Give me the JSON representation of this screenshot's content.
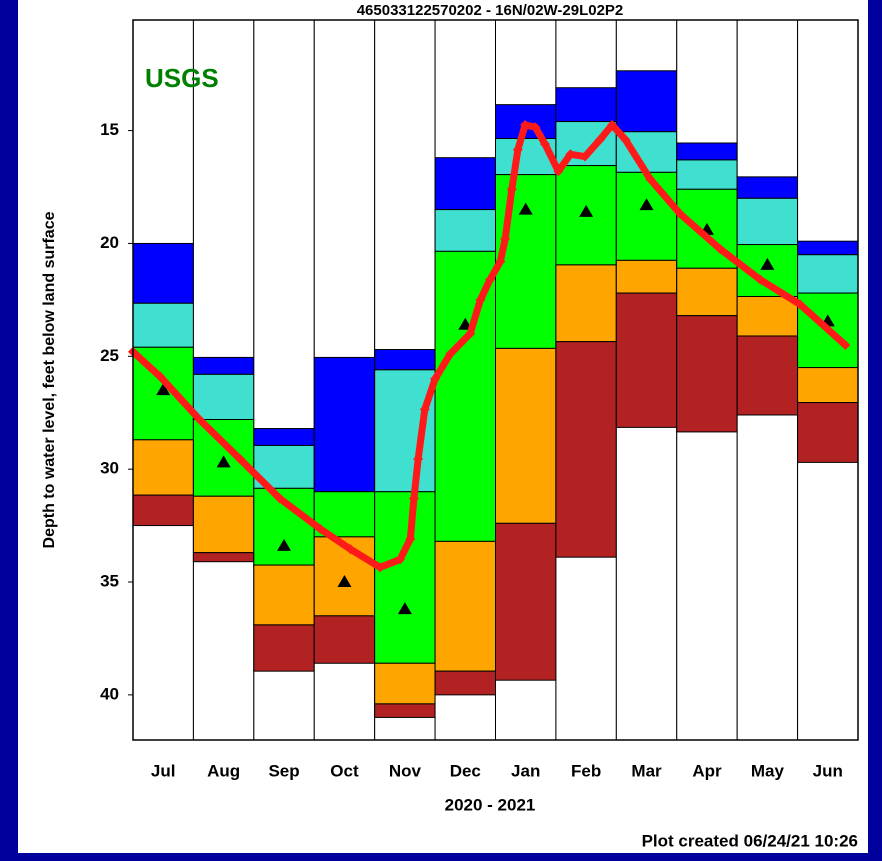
{
  "chart_data": {
    "type": "percentile",
    "title": "465033122570202 - 16N/02W-29L02P2",
    "logo": "USGS",
    "ylabel": "Depth to water level, feet below land surface",
    "xlabel": "2020 - 2021",
    "footer": "Plot created 06/24/21 10:26",
    "categories": [
      "Jul",
      "Aug",
      "Sep",
      "Oct",
      "Nov",
      "Dec",
      "Jan",
      "Feb",
      "Mar",
      "Apr",
      "May",
      "Jun"
    ],
    "bands": [
      [
        20.0,
        22.65,
        24.6,
        28.7,
        31.15,
        32.5
      ],
      [
        25.05,
        25.8,
        27.8,
        31.2,
        33.7,
        34.1
      ],
      [
        28.2,
        28.95,
        30.85,
        34.25,
        36.9,
        38.95
      ],
      [
        25.05,
        31.0,
        31.0,
        33.0,
        36.5,
        38.6
      ],
      [
        24.7,
        25.6,
        31.0,
        38.6,
        40.4,
        41.0
      ],
      [
        16.2,
        18.5,
        20.35,
        33.2,
        38.95,
        40.0
      ],
      [
        13.85,
        15.35,
        16.95,
        24.65,
        32.4,
        39.35
      ],
      [
        13.1,
        14.6,
        16.55,
        20.95,
        24.35,
        33.9
      ],
      [
        12.35,
        15.05,
        16.85,
        20.75,
        22.2,
        28.15
      ],
      [
        15.55,
        16.3,
        17.6,
        21.1,
        23.2,
        28.35
      ],
      [
        17.05,
        18.0,
        20.05,
        22.35,
        24.1,
        27.6
      ],
      [
        19.9,
        20.5,
        22.2,
        25.5,
        27.05,
        29.7
      ]
    ],
    "band_colors": [
      "#0000ff",
      "#40e0d0",
      "#00ff00",
      "#ffa500",
      "#b22222"
    ],
    "medians": [
      26.5,
      29.7,
      33.4,
      35.0,
      36.2,
      23.6,
      18.5,
      18.6,
      18.3,
      19.4,
      20.95,
      23.45
    ],
    "level": {
      "color": "#ff1a1a",
      "x": [
        0,
        0.45,
        1.1,
        1.77,
        2.43,
        3.1,
        3.6,
        4.09,
        4.42,
        4.59,
        4.65,
        4.72,
        4.83,
        5.0,
        5.25,
        5.58,
        5.75,
        5.91,
        6.08,
        6.16,
        6.27,
        6.37,
        6.49,
        6.66,
        6.82,
        7.04,
        7.24,
        7.48,
        7.73,
        7.93,
        8.15,
        8.56,
        9.06,
        9.72,
        10.38,
        11.04,
        11.79
      ],
      "values": [
        24.8,
        25.9,
        27.8,
        29.55,
        31.3,
        32.65,
        33.55,
        34.35,
        34.0,
        33.1,
        31.3,
        29.55,
        27.35,
        26.0,
        24.9,
        24.0,
        22.5,
        21.6,
        20.8,
        19.8,
        17.6,
        15.85,
        14.75,
        14.85,
        15.6,
        16.8,
        16.05,
        16.15,
        15.4,
        14.75,
        15.4,
        17.15,
        18.7,
        20.25,
        21.6,
        22.7,
        24.5
      ]
    },
    "xlim": [
      0,
      12
    ],
    "ylim": [
      42,
      10.1
    ],
    "yticks": [
      15,
      20,
      25,
      30,
      35,
      40
    ]
  }
}
